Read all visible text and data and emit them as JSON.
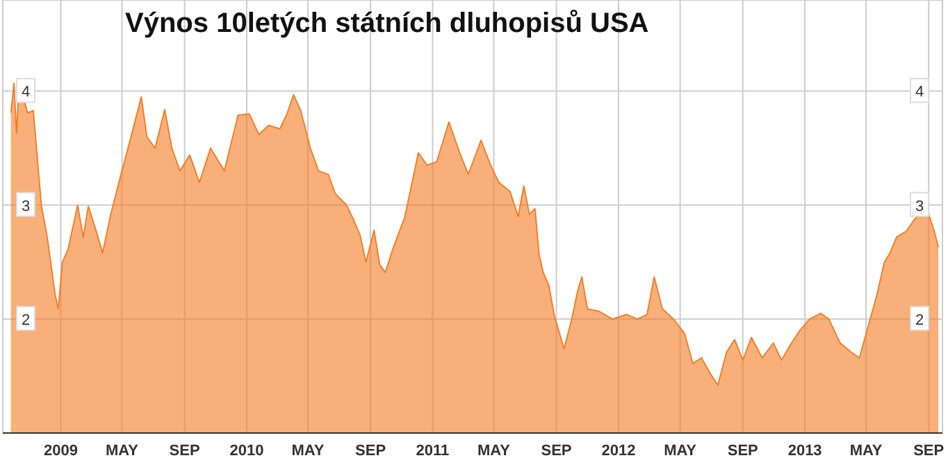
{
  "chart_data": {
    "type": "area",
    "title": "Výnos 10letých státních dluhopisů USA",
    "x": [
      "2008-09-25",
      "2008-10-01",
      "2008-10-06",
      "2008-10-11",
      "2008-10-28",
      "2008-11-08",
      "2008-11-18",
      "2008-11-24",
      "2008-12-05",
      "2008-12-21",
      "2008-12-27",
      "2009-01-04",
      "2009-01-15",
      "2009-02-03",
      "2009-02-14",
      "2009-02-24",
      "2009-03-13",
      "2009-03-24",
      "2009-04-09",
      "2009-04-28",
      "2009-05-17",
      "2009-06-08",
      "2009-06-19",
      "2009-07-05",
      "2009-07-24",
      "2009-08-07",
      "2009-08-23",
      "2009-09-11",
      "2009-09-30",
      "2009-10-22",
      "2009-11-18",
      "2009-12-15",
      "2010-01-06",
      "2010-01-25",
      "2010-02-13",
      "2010-03-07",
      "2010-03-21",
      "2010-04-03",
      "2010-04-17",
      "2010-05-06",
      "2010-05-22",
      "2010-06-10",
      "2010-06-24",
      "2010-07-16",
      "2010-07-29",
      "2010-08-12",
      "2010-08-23",
      "2010-09-08",
      "2010-09-19",
      "2010-09-30",
      "2010-10-16",
      "2010-11-07",
      "2010-12-04",
      "2010-12-21",
      "2011-01-09",
      "2011-02-02",
      "2011-02-24",
      "2011-03-12",
      "2011-04-06",
      "2011-04-25",
      "2011-05-11",
      "2011-06-02",
      "2011-06-18",
      "2011-06-29",
      "2011-07-10",
      "2011-07-21",
      "2011-07-29",
      "2011-08-06",
      "2011-08-17",
      "2011-08-28",
      "2011-09-16",
      "2011-09-30",
      "2011-10-13",
      "2011-10-21",
      "2011-11-01",
      "2011-11-23",
      "2011-12-20",
      "2012-01-17",
      "2012-02-07",
      "2012-02-26",
      "2012-03-11",
      "2012-03-27",
      "2012-04-18",
      "2012-05-10",
      "2012-05-26",
      "2012-06-12",
      "2012-06-28",
      "2012-07-14",
      "2012-07-31",
      "2012-08-16",
      "2012-09-01",
      "2012-09-18",
      "2012-10-09",
      "2012-10-31",
      "2012-11-16",
      "2012-12-03",
      "2012-12-22",
      "2013-01-10",
      "2013-02-01",
      "2013-02-17",
      "2013-03-11",
      "2013-04-02",
      "2013-04-18",
      "2013-05-04",
      "2013-05-21",
      "2013-06-06",
      "2013-06-17",
      "2013-06-30",
      "2013-07-19",
      "2013-08-05",
      "2013-08-27",
      "2013-09-12",
      "2013-09-20"
    ],
    "series": [
      {
        "color": "#f47920",
        "values": [
          3.81,
          4.07,
          3.63,
          4.07,
          3.81,
          3.83,
          3.3,
          2.99,
          2.73,
          2.21,
          2.09,
          2.5,
          2.61,
          3.0,
          2.72,
          2.99,
          2.75,
          2.58,
          2.92,
          3.25,
          3.57,
          3.95,
          3.6,
          3.5,
          3.84,
          3.5,
          3.3,
          3.44,
          3.2,
          3.5,
          3.3,
          3.79,
          3.8,
          3.62,
          3.7,
          3.67,
          3.8,
          3.97,
          3.83,
          3.5,
          3.3,
          3.27,
          3.1,
          3.0,
          2.88,
          2.73,
          2.5,
          2.78,
          2.48,
          2.41,
          2.63,
          2.89,
          3.46,
          3.35,
          3.38,
          3.73,
          3.45,
          3.27,
          3.57,
          3.35,
          3.2,
          3.12,
          2.9,
          3.17,
          2.92,
          2.97,
          2.57,
          2.41,
          2.3,
          2.03,
          1.74,
          1.98,
          2.25,
          2.37,
          2.09,
          2.07,
          2.0,
          2.04,
          2.0,
          2.04,
          2.37,
          2.09,
          2.0,
          1.87,
          1.61,
          1.66,
          1.53,
          1.42,
          1.71,
          1.82,
          1.64,
          1.84,
          1.66,
          1.79,
          1.64,
          1.77,
          1.9,
          2.0,
          2.05,
          2.0,
          1.79,
          1.71,
          1.66,
          1.92,
          2.19,
          2.5,
          2.58,
          2.72,
          2.77,
          2.88,
          2.99,
          2.77,
          2.63
        ]
      }
    ],
    "xlim": [
      "2008-09-09",
      "2013-09-28"
    ],
    "xticks": [
      {
        "value": "2009-01-01",
        "label": "2009"
      },
      {
        "value": "2009-05-01",
        "label": "MAY"
      },
      {
        "value": "2009-09-01",
        "label": "SEP"
      },
      {
        "value": "2010-01-01",
        "label": "2010"
      },
      {
        "value": "2010-05-01",
        "label": "MAY"
      },
      {
        "value": "2010-09-01",
        "label": "SEP"
      },
      {
        "value": "2011-01-01",
        "label": "2011"
      },
      {
        "value": "2011-05-01",
        "label": "MAY"
      },
      {
        "value": "2011-09-01",
        "label": "SEP"
      },
      {
        "value": "2012-01-01",
        "label": "2012"
      },
      {
        "value": "2012-05-01",
        "label": "MAY"
      },
      {
        "value": "2012-09-01",
        "label": "SEP"
      },
      {
        "value": "2013-01-01",
        "label": "2013"
      },
      {
        "value": "2013-05-01",
        "label": "MAY"
      },
      {
        "value": "2013-09-01",
        "label": "SEP"
      }
    ],
    "ylim": [
      1,
      4.8
    ],
    "yticks": [
      2,
      3,
      4
    ],
    "y2lim": [
      1,
      4.8
    ],
    "y2ticks": [
      2,
      3,
      4
    ],
    "grid": true,
    "line_style": "solid",
    "marker": "none"
  }
}
